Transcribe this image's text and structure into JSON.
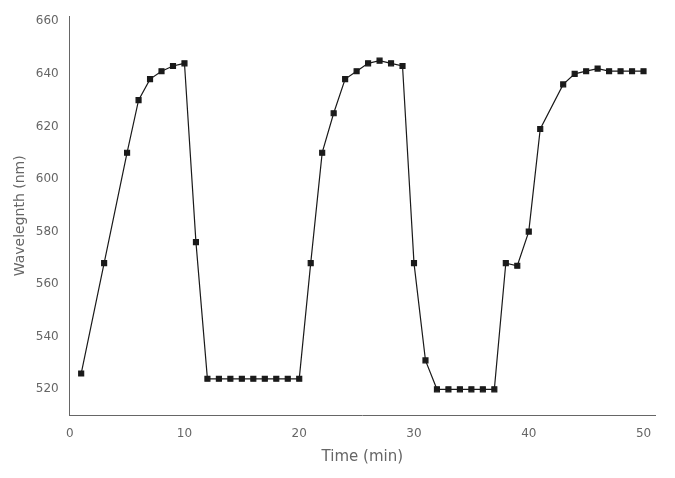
{
  "chart_data": {
    "type": "line",
    "x": [
      1,
      3,
      5,
      6,
      7,
      8,
      9,
      10,
      11,
      12,
      13,
      14,
      15,
      16,
      17,
      18,
      19,
      20,
      21,
      22,
      23,
      24,
      25,
      26,
      27,
      28,
      29,
      30,
      31,
      32,
      33,
      34,
      35,
      36,
      37,
      38,
      39,
      40,
      41,
      43,
      44,
      45,
      46,
      47,
      48,
      49,
      50
    ],
    "values": [
      526,
      568,
      610,
      630,
      638,
      641,
      643,
      644,
      576,
      524,
      524,
      524,
      524,
      524,
      524,
      524,
      524,
      524,
      568,
      610,
      625,
      638,
      641,
      644,
      645,
      644,
      643,
      568,
      531,
      520,
      520,
      520,
      520,
      520,
      520,
      568,
      567,
      580,
      619,
      636,
      640,
      641,
      642,
      641,
      641,
      641,
      641
    ],
    "xlabel": "Time (min)",
    "ylabel": "Wavelegnth (nm)",
    "xlim": [
      0,
      51
    ],
    "ylim": [
      510,
      662
    ],
    "xticks": [
      0,
      10,
      20,
      30,
      40,
      50
    ],
    "yticks": [
      520,
      540,
      560,
      580,
      600,
      620,
      640,
      660
    ],
    "color": "#1a1a1a",
    "marker": "square",
    "line_style": "solid",
    "grid": false
  }
}
